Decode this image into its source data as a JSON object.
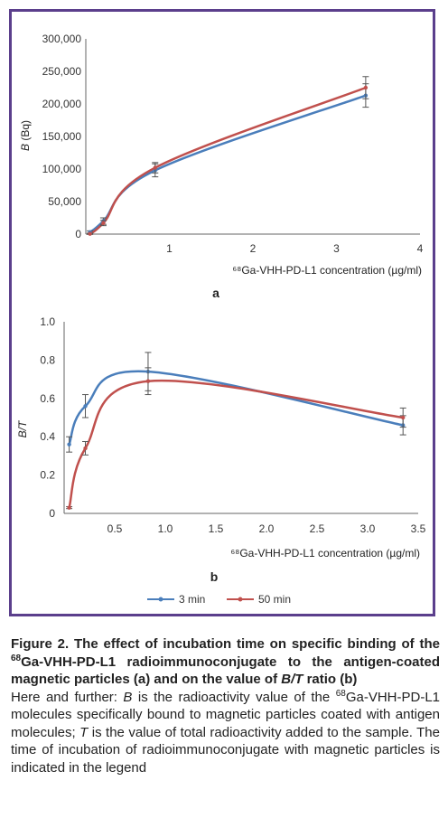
{
  "chart_data": [
    {
      "type": "line",
      "panel_label": "a",
      "ylabel": "B (Bq)",
      "xlabel": "⁶⁸Ga-VHH-PD-L1 concentration (µg/ml)",
      "xlim": [
        0,
        4
      ],
      "ylim": [
        0,
        300000
      ],
      "x_ticks": [
        "1",
        "2",
        "3",
        "4"
      ],
      "y_ticks": [
        "0",
        "50,000",
        "100,000",
        "150,000",
        "200,000",
        "250,000",
        "300,000"
      ],
      "series": [
        {
          "name": "3 min",
          "color": "#4a7ebb",
          "x": [
            0.05,
            0.21,
            0.83,
            3.35
          ],
          "y": [
            3000,
            20000,
            98000,
            213000
          ],
          "err": [
            2000,
            5000,
            10000,
            18000
          ]
        },
        {
          "name": "50 min",
          "color": "#c0504d",
          "x": [
            0.05,
            0.21,
            0.83,
            3.35
          ],
          "y": [
            500,
            17000,
            102000,
            225000
          ],
          "err": [
            1000,
            4000,
            8000,
            17000
          ]
        }
      ]
    },
    {
      "type": "line",
      "panel_label": "b",
      "ylabel": "B/T",
      "xlabel": "⁶⁸Ga-VHH-PD-L1 concentration (µg/ml)",
      "xlim": [
        0,
        3.5
      ],
      "ylim": [
        0,
        1.0
      ],
      "x_ticks": [
        "0.5",
        "1.0",
        "1.5",
        "2.0",
        "2.5",
        "3.0",
        "3.5"
      ],
      "y_ticks": [
        "0",
        "0.2",
        "0.4",
        "0.6",
        "0.8",
        "1.0"
      ],
      "series": [
        {
          "name": "3 min",
          "color": "#4a7ebb",
          "x": [
            0.05,
            0.21,
            0.83,
            3.35
          ],
          "y": [
            0.36,
            0.56,
            0.74,
            0.46
          ],
          "err": [
            0.04,
            0.06,
            0.1,
            0.05
          ]
        },
        {
          "name": "50 min",
          "color": "#c0504d",
          "x": [
            0.05,
            0.21,
            0.83,
            3.35
          ],
          "y": [
            0.03,
            0.34,
            0.69,
            0.5
          ],
          "err": [
            0.005,
            0.035,
            0.07,
            0.05
          ]
        }
      ]
    }
  ],
  "legend": [
    {
      "name": "3 min",
      "color": "#4a7ebb"
    },
    {
      "name": "50 min",
      "color": "#c0504d"
    }
  ],
  "caption": {
    "fig_label": "Figure 2.",
    "title_1": " The effect of incubation time on specific binding of the ",
    "sup_68_a": "68",
    "title_2": "Ga-VHH-PD-L1 radioimmunoconjugate to the antigen-coated magnetic particles (a) and on the value of ",
    "title_bt": "B/T",
    "title_3": " ratio (b)",
    "body_1": "Here and further: ",
    "body_B": "B",
    "body_2": " is the radioactivity value of the ",
    "sup_68_b": "68",
    "body_3": "Ga-VHH-PD-L1 molecules specifically bound to magnetic particles coated with antigen molecules; ",
    "body_T": "T",
    "body_4": " is the value of total radioactivity added to the sample. The time of incubation of radioimmunoconjugate with magnetic particles is indicated in the legend"
  }
}
